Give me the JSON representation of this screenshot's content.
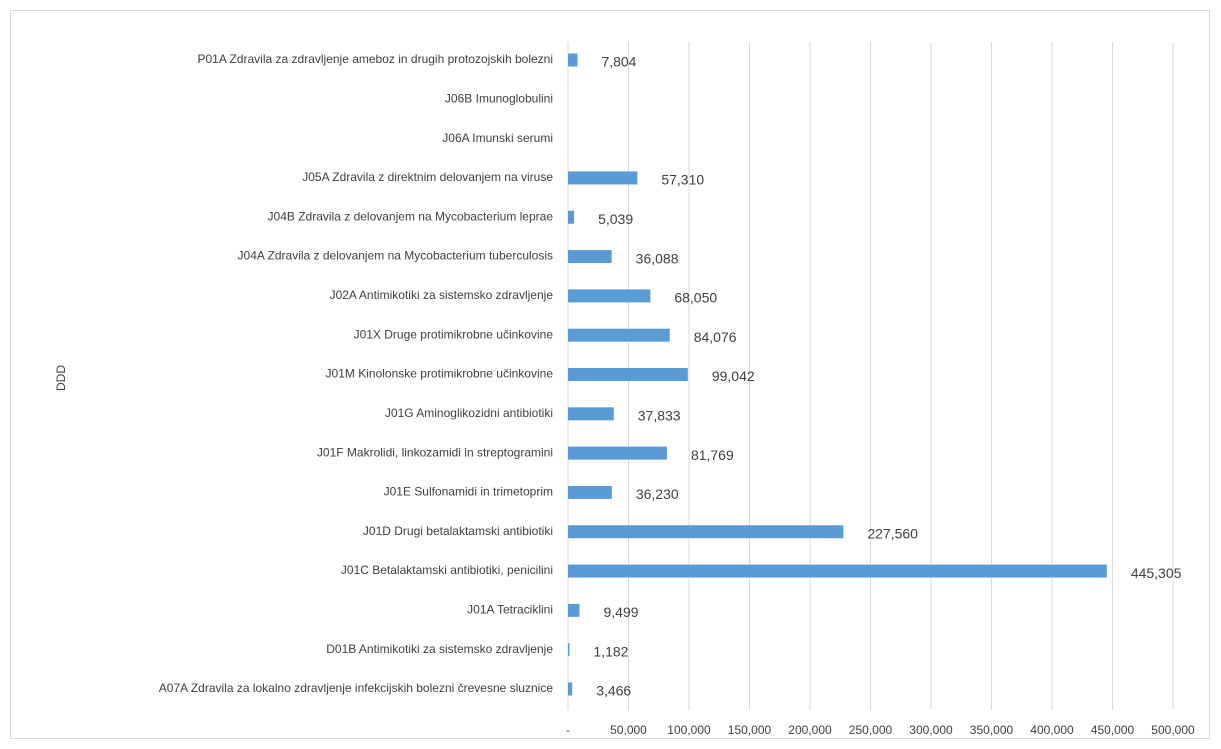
{
  "chart_data": {
    "type": "bar",
    "orientation": "horizontal",
    "axis_label": "DDD",
    "categories": [
      "A07A Zdravila za lokalno zdravljenje infekcijskih bolezni črevesne sluznice",
      "D01B Antimikotiki za sistemsko zdravljenje",
      "J01A Tetraciklini",
      "J01C Betalaktamski antibiotiki, penicilini",
      "J01D Drugi betalaktamski antibiotiki",
      "J01E Sulfonamidi in trimetoprim",
      "J01F Makrolidi, linkozamidi in streptogramini",
      "J01G Aminoglikozidni antibiotiki",
      "J01M Kinolonske protimikrobne učinkovine",
      "J01X Druge protimikrobne učinkovine",
      "J02A Antimikotiki za sistemsko zdravljenje",
      "J04A Zdravila z delovanjem na Mycobacterium tuberculosis",
      "J04B Zdravila z delovanjem na Mycobacterium leprae",
      "J05A Zdravila z direktnim delovanjem na viruse",
      "J06A Imunski serumi",
      "J06B Imunoglobulini",
      "P01A Zdravila za zdravljenje ameboz in drugih protozojskih bolezni"
    ],
    "values": [
      3466,
      1182,
      9499,
      445305,
      227560,
      36230,
      81769,
      37833,
      99042,
      84076,
      68050,
      36088,
      5039,
      57310,
      null,
      null,
      7804
    ],
    "value_labels": [
      "3,466",
      "1,182",
      "9,499",
      "445,305",
      "227,560",
      "36,230",
      "81,769",
      "37,833",
      "99,042",
      "84,076",
      "68,050",
      "36,088",
      "5,039",
      "57,310",
      null,
      null,
      "7,804"
    ],
    "color": "#5b9bd5",
    "xlim": [
      0,
      500000
    ],
    "xticks": [
      {
        "value": 0,
        "label": "-"
      },
      {
        "value": 50000,
        "label": "50,000"
      },
      {
        "value": 100000,
        "label": "100,000"
      },
      {
        "value": 150000,
        "label": "150,000"
      },
      {
        "value": 200000,
        "label": "200,000"
      },
      {
        "value": 250000,
        "label": "250,000"
      },
      {
        "value": 300000,
        "label": "300,000"
      },
      {
        "value": 350000,
        "label": "350,000"
      },
      {
        "value": 400000,
        "label": "400,000"
      },
      {
        "value": 450000,
        "label": "450,000"
      },
      {
        "value": 500000,
        "label": "500,000"
      }
    ],
    "grid": true
  }
}
